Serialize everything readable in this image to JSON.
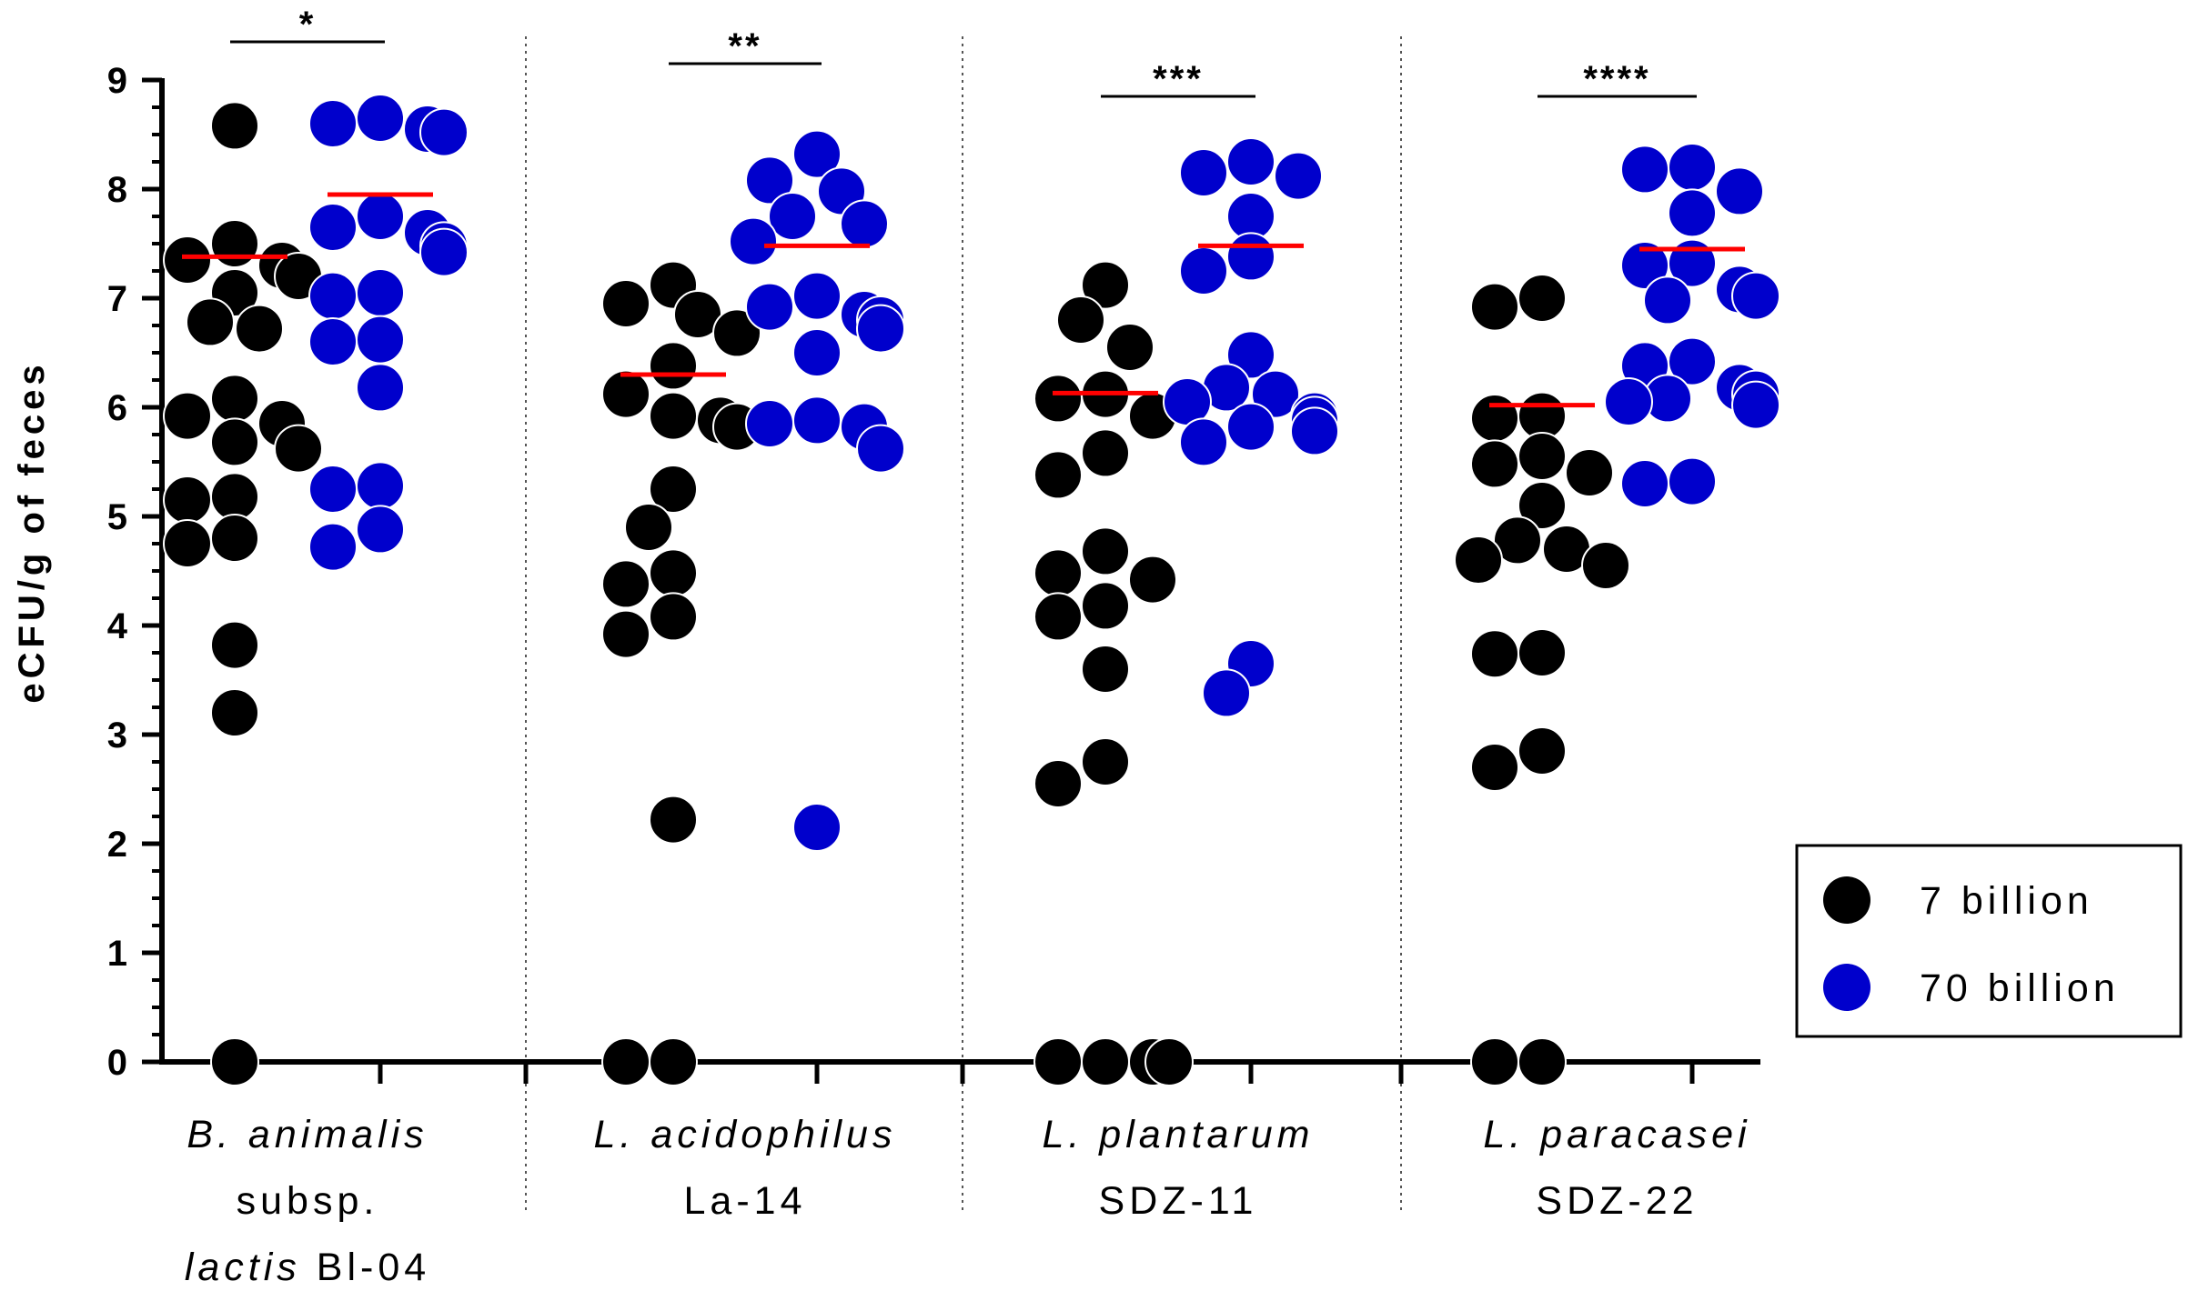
{
  "chart_data": {
    "type": "scatter",
    "title": "",
    "xlabel": "",
    "ylabel": "eCFU/g of feces",
    "ylim": [
      0,
      9
    ],
    "yticks": [
      0,
      1,
      2,
      3,
      4,
      5,
      6,
      7,
      8,
      9
    ],
    "grid": false,
    "legend_position": "right",
    "colors": {
      "mean_line": "#ff0000",
      "7 billion": "#000000",
      "70 billion": "#0000cc"
    },
    "series": [
      {
        "name": "7 billion",
        "color": "#000000"
      },
      {
        "name": "70 billion",
        "color": "#0000cc"
      }
    ],
    "categories": [
      {
        "label_lines": [
          {
            "italic": "B. animalis",
            "plain": ""
          },
          {
            "italic": "",
            "plain": "subsp."
          },
          {
            "italic": "lactis",
            "plain": " Bl-04"
          }
        ],
        "significance": "*",
        "groups": [
          {
            "series": "7 billion",
            "mean": 7.38,
            "values": [
              8.58,
              7.5,
              7.35,
              7.3,
              7.2,
              7.05,
              6.78,
              6.72,
              6.08,
              5.92,
              5.85,
              5.68,
              5.62,
              5.18,
              5.15,
              4.8,
              4.75,
              3.82,
              3.2,
              0
            ]
          },
          {
            "series": "70 billion",
            "mean": 7.95,
            "values": [
              8.65,
              8.6,
              8.55,
              8.52,
              7.75,
              7.65,
              7.6,
              7.48,
              7.42,
              7.05,
              7.02,
              6.62,
              6.6,
              6.18,
              5.28,
              5.25,
              4.88,
              4.72
            ]
          }
        ]
      },
      {
        "label_lines": [
          {
            "italic": "L. acidophilus",
            "plain": ""
          },
          {
            "italic": "",
            "plain": "La-14"
          }
        ],
        "significance": "**",
        "groups": [
          {
            "series": "7 billion",
            "mean": 6.3,
            "values": [
              7.12,
              6.95,
              6.85,
              6.68,
              6.38,
              6.12,
              5.92,
              5.88,
              5.82,
              5.25,
              4.9,
              4.48,
              4.38,
              4.08,
              3.92,
              2.22,
              0,
              0
            ]
          },
          {
            "series": "70 billion",
            "mean": 7.48,
            "values": [
              8.32,
              8.08,
              7.98,
              7.75,
              7.68,
              7.52,
              7.02,
              6.92,
              6.85,
              6.8,
              6.72,
              6.5,
              5.88,
              5.85,
              5.82,
              5.62,
              2.15
            ]
          }
        ]
      },
      {
        "label_lines": [
          {
            "italic": "L. plantarum",
            "plain": ""
          },
          {
            "italic": "",
            "plain": "SDZ-11"
          }
        ],
        "significance": "***",
        "groups": [
          {
            "series": "7 billion",
            "mean": 6.13,
            "values": [
              7.12,
              6.8,
              6.55,
              6.12,
              6.08,
              5.92,
              5.58,
              5.38,
              4.68,
              4.48,
              4.42,
              4.18,
              4.08,
              3.6,
              2.75,
              2.55,
              0,
              0,
              0,
              0
            ]
          },
          {
            "series": "70 billion",
            "mean": 7.48,
            "values": [
              8.25,
              8.15,
              8.12,
              7.75,
              7.38,
              7.25,
              6.48,
              6.18,
              6.12,
              6.05,
              5.92,
              5.88,
              5.82,
              5.78,
              5.68,
              3.65,
              3.38
            ]
          }
        ]
      },
      {
        "label_lines": [
          {
            "italic": "L. paracasei",
            "plain": ""
          },
          {
            "italic": "",
            "plain": "SDZ-22"
          }
        ],
        "significance": "****",
        "groups": [
          {
            "series": "7 billion",
            "mean": 6.02,
            "values": [
              7.0,
              6.92,
              5.92,
              5.9,
              5.55,
              5.48,
              5.4,
              5.1,
              4.78,
              4.7,
              4.6,
              4.55,
              3.75,
              3.74,
              2.85,
              2.7,
              0,
              0
            ]
          },
          {
            "series": "70 billion",
            "mean": 7.45,
            "values": [
              8.2,
              8.18,
              7.98,
              7.78,
              7.32,
              7.3,
              7.08,
              7.02,
              6.98,
              6.42,
              6.38,
              6.18,
              6.12,
              6.08,
              6.05,
              6.02,
              5.32,
              5.3
            ]
          }
        ]
      }
    ]
  }
}
